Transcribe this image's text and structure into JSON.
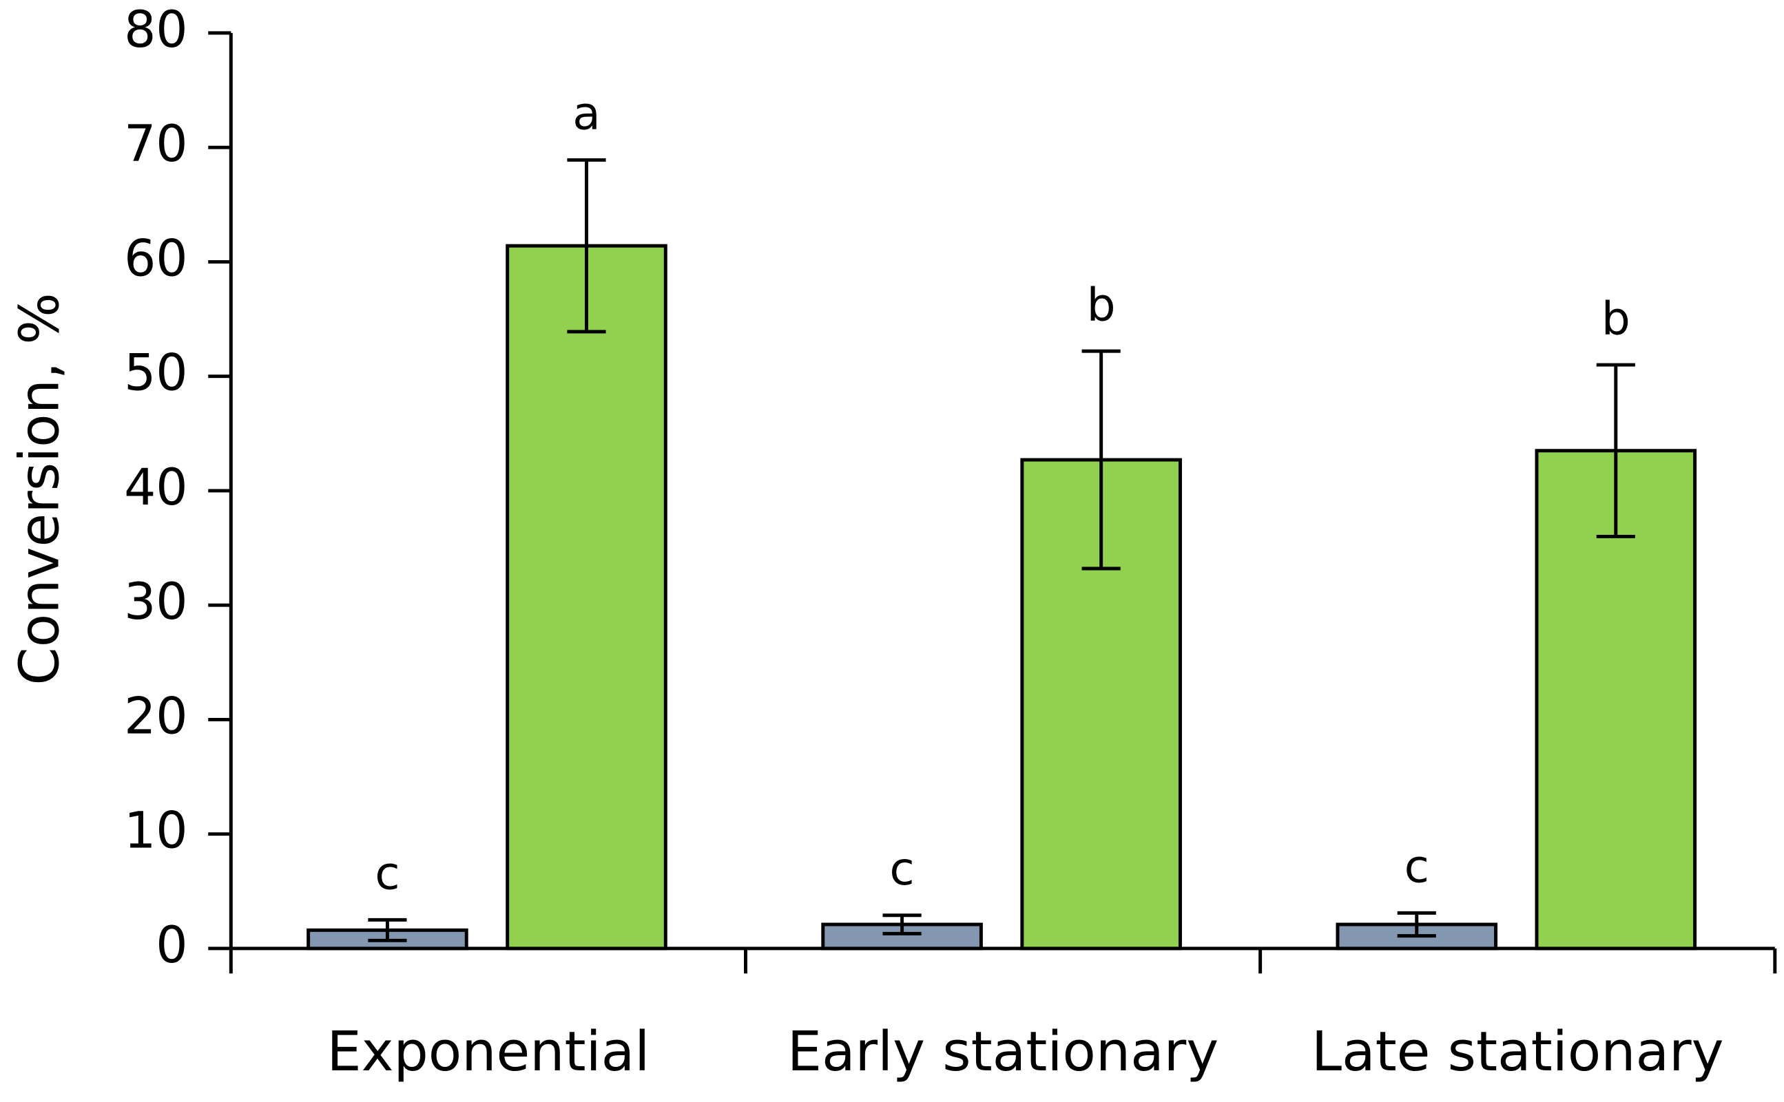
{
  "chart_data": {
    "type": "bar",
    "y_label": "Conversion, %",
    "categories": [
      "Exponential",
      "Early stationary",
      "Late stationary"
    ],
    "series": [
      {
        "color": "#8497b0",
        "values": [
          1.6,
          2.1,
          2.1
        ],
        "errors": [
          0.9,
          0.8,
          1.0
        ],
        "letters": [
          "c",
          "c",
          "c"
        ]
      },
      {
        "color": "#92d050",
        "values": [
          61.4,
          42.7,
          43.5
        ],
        "errors": [
          7.5,
          9.5,
          7.5
        ],
        "letters": [
          "a",
          "b",
          "b"
        ]
      }
    ],
    "ylim": [
      0,
      80
    ],
    "yticks": [
      0,
      10,
      20,
      30,
      40,
      50,
      60,
      70,
      80
    ],
    "grid": false
  }
}
